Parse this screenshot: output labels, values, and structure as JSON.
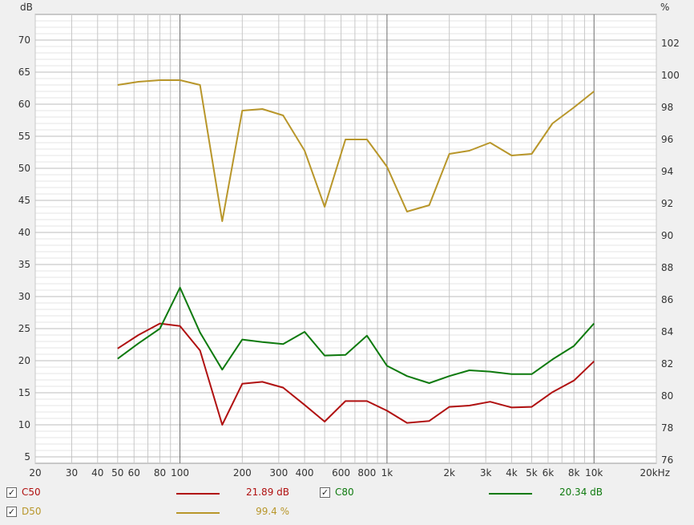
{
  "chart_data": {
    "type": "line",
    "x_scale": "log",
    "xlim": [
      20,
      20000
    ],
    "x_unit_label": "kHz",
    "left_axis": {
      "label": "dB",
      "ylim": [
        4,
        74
      ],
      "ticks": [
        5,
        10,
        15,
        20,
        25,
        30,
        35,
        40,
        45,
        50,
        55,
        60,
        65,
        70
      ]
    },
    "right_axis": {
      "label": "%",
      "ylim": [
        75.8,
        103.8
      ],
      "ticks": [
        76,
        78,
        80,
        82,
        84,
        86,
        88,
        90,
        92,
        94,
        96,
        98,
        100,
        102
      ]
    },
    "x_ticks": [
      {
        "v": 20,
        "t": "20"
      },
      {
        "v": 30,
        "t": "30"
      },
      {
        "v": 40,
        "t": "40"
      },
      {
        "v": 50,
        "t": "50"
      },
      {
        "v": 60,
        "t": "60"
      },
      {
        "v": 80,
        "t": "80"
      },
      {
        "v": 100,
        "t": "100"
      },
      {
        "v": 200,
        "t": "200"
      },
      {
        "v": 300,
        "t": "300"
      },
      {
        "v": 400,
        "t": "400"
      },
      {
        "v": 600,
        "t": "600"
      },
      {
        "v": 800,
        "t": "800"
      },
      {
        "v": 1000,
        "t": "1k"
      },
      {
        "v": 2000,
        "t": "2k"
      },
      {
        "v": 3000,
        "t": "3k"
      },
      {
        "v": 4000,
        "t": "4k"
      },
      {
        "v": 5000,
        "t": "5k"
      },
      {
        "v": 6000,
        "t": "6k"
      },
      {
        "v": 8000,
        "t": "8k"
      },
      {
        "v": 10000,
        "t": "10k"
      },
      {
        "v": 20000,
        "t": "20kHz"
      }
    ],
    "x": [
      50,
      63,
      80,
      100,
      125,
      160,
      200,
      250,
      315,
      400,
      500,
      630,
      800,
      1000,
      1250,
      1600,
      2000,
      2500,
      3150,
      4000,
      5000,
      6300,
      8000,
      10000
    ],
    "series": [
      {
        "name": "C50",
        "axis": "left",
        "color": "#b01010",
        "values": [
          21.9,
          24.0,
          25.8,
          25.4,
          21.6,
          10.0,
          16.4,
          16.7,
          15.8,
          13.1,
          10.5,
          13.7,
          13.7,
          12.2,
          10.3,
          10.6,
          12.8,
          13.0,
          13.6,
          12.7,
          12.8,
          15.1,
          16.9,
          19.9
        ]
      },
      {
        "name": "C80",
        "axis": "left",
        "color": "#0e7a0e",
        "values": [
          20.3,
          22.7,
          25.0,
          31.4,
          24.4,
          18.6,
          23.3,
          22.9,
          22.6,
          24.5,
          20.8,
          20.9,
          23.9,
          19.2,
          17.6,
          16.5,
          17.6,
          18.5,
          18.3,
          17.9,
          17.9,
          20.2,
          22.3,
          25.8
        ]
      },
      {
        "name": "D50",
        "axis": "right",
        "color": "#b8962a",
        "values": [
          99.4,
          99.6,
          99.7,
          99.7,
          99.4,
          90.9,
          97.8,
          97.9,
          97.5,
          95.3,
          91.8,
          96.0,
          96.0,
          94.3,
          91.5,
          91.9,
          95.1,
          95.3,
          95.8,
          95.0,
          95.1,
          97.0,
          98.0,
          99.0
        ]
      }
    ]
  },
  "legend": {
    "c50": {
      "name": "C50",
      "value": "21.89 dB",
      "color": "#b01010",
      "checked": "✓"
    },
    "c80": {
      "name": "C80",
      "value": "20.34 dB",
      "color": "#0e7a0e",
      "checked": "✓"
    },
    "d50": {
      "name": "D50",
      "value": "99.4 %",
      "color": "#b8962a",
      "checked": "✓"
    }
  }
}
